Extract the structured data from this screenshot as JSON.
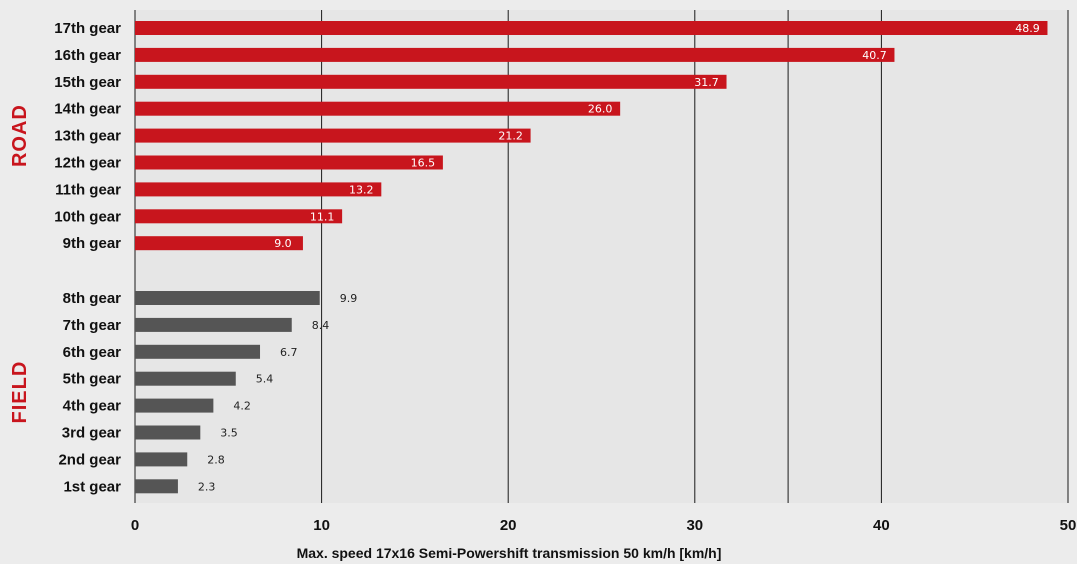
{
  "chart_data": {
    "type": "bar",
    "orientation": "horizontal",
    "xlabel": "Max. speed 17x16 Semi-Powershift transmission 50 km/h [km/h]",
    "xlim": [
      0,
      50
    ],
    "xticks": [
      "0",
      "10",
      "20",
      "30",
      "40",
      "50"
    ],
    "grid": "vertical",
    "extra_gridline_at": 35,
    "groups": [
      {
        "name": "ROAD",
        "color": "#c8151d",
        "categories": [
          "17th gear",
          "16th gear",
          "15th gear",
          "14th gear",
          "13th gear",
          "12th gear",
          "11th gear",
          "10th gear",
          "9th gear"
        ],
        "values": [
          48.9,
          40.7,
          31.7,
          26.0,
          21.2,
          16.5,
          13.2,
          11.1,
          9.0
        ],
        "value_labels": [
          "48.9",
          "40.7",
          "31.7",
          "26.0",
          "21.2",
          "16.5",
          "13.2",
          "11.1",
          "9.0"
        ],
        "label_position": "inside-end"
      },
      {
        "name": "FIELD",
        "color": "#555555",
        "categories": [
          "8th gear",
          "7th gear",
          "6th gear",
          "5th gear",
          "4th gear",
          "3rd gear",
          "2nd gear",
          "1st gear"
        ],
        "values": [
          9.9,
          8.4,
          6.7,
          5.4,
          4.2,
          3.5,
          2.8,
          2.3
        ],
        "value_labels": [
          "9.9",
          "8.4",
          "6.7",
          "5.4",
          "4.2",
          "3.5",
          "2.8",
          "2.3"
        ],
        "label_position": "outside-end"
      }
    ]
  }
}
